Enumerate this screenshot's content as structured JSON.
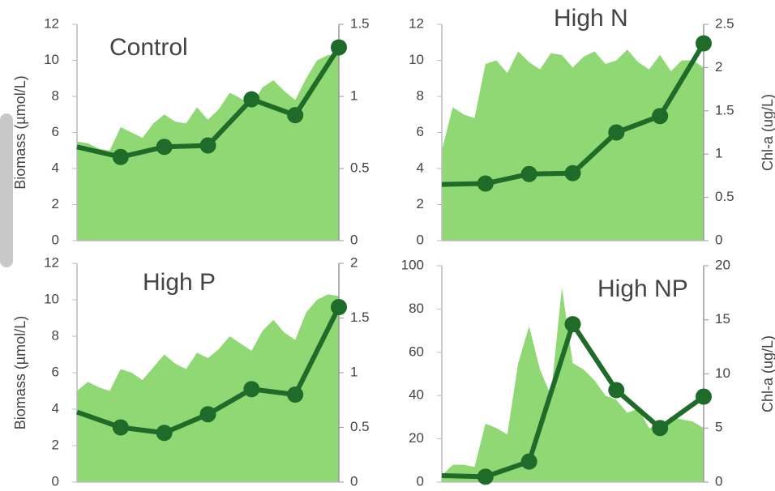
{
  "chart_data": [
    {
      "type": "combo",
      "title": "Control",
      "ylabel": "Biomass (µmol/L)",
      "ylim": [
        0,
        12
      ],
      "yticks": [
        0,
        2,
        4,
        6,
        8,
        10,
        12
      ],
      "y2lim": [
        0,
        1.5
      ],
      "y2ticks": [
        0,
        0.5,
        1,
        1.5
      ],
      "series": [
        {
          "type": "area",
          "color": "#8fd873",
          "values": [
            5.5,
            5.4,
            5.1,
            5.0,
            6.3,
            6.0,
            5.7,
            6.5,
            7.0,
            6.6,
            6.5,
            7.4,
            6.7,
            7.3,
            8.2,
            7.9,
            7.5,
            8.5,
            8.9,
            8.3,
            7.8,
            9.0,
            10.0,
            10.3,
            10.3
          ]
        },
        {
          "type": "line",
          "axis": "y2",
          "color": "#1e6b2a",
          "values": [
            0.65,
            0.58,
            0.65,
            0.66,
            0.98,
            0.87,
            1.34
          ]
        }
      ]
    },
    {
      "type": "combo",
      "title": "High N",
      "y2label": "Chl-a (ug/L)",
      "ylim": [
        0,
        12
      ],
      "yticks": [
        0,
        2,
        4,
        6,
        8,
        10,
        12
      ],
      "y2lim": [
        0,
        2.5
      ],
      "y2ticks": [
        0,
        0.5,
        1,
        1.5,
        2,
        2.5
      ],
      "series": [
        {
          "type": "area",
          "color": "#8fd873",
          "values": [
            5.0,
            7.4,
            7.0,
            6.8,
            9.8,
            10.0,
            9.3,
            10.5,
            9.9,
            9.5,
            10.4,
            10.3,
            9.6,
            10.2,
            10.5,
            9.8,
            10.0,
            10.6,
            9.9,
            9.5,
            10.3,
            9.4,
            10.0,
            10.0,
            9.6
          ]
        },
        {
          "type": "line",
          "axis": "y2",
          "color": "#1e6b2a",
          "values": [
            0.65,
            0.66,
            0.77,
            0.78,
            1.25,
            1.44,
            2.28
          ]
        }
      ]
    },
    {
      "type": "combo",
      "title": "High P",
      "ylabel": "Biomass (µmol/L)",
      "ylim": [
        0,
        12
      ],
      "yticks": [
        0,
        2,
        4,
        6,
        8,
        10,
        12
      ],
      "y2lim": [
        0,
        2
      ],
      "y2ticks": [
        0,
        0.5,
        1,
        1.5,
        2
      ],
      "series": [
        {
          "type": "area",
          "color": "#8fd873",
          "values": [
            5.0,
            5.5,
            5.2,
            5.0,
            6.2,
            6.0,
            5.6,
            6.3,
            7.0,
            6.5,
            6.2,
            7.1,
            6.8,
            7.3,
            8.0,
            7.6,
            7.2,
            8.3,
            8.9,
            8.2,
            7.8,
            9.3,
            10.0,
            10.3,
            10.2
          ]
        },
        {
          "type": "line",
          "axis": "y2",
          "color": "#1e6b2a",
          "values": [
            0.64,
            0.5,
            0.45,
            0.62,
            0.85,
            0.8,
            1.6
          ]
        }
      ]
    },
    {
      "type": "combo",
      "title": "High NP",
      "y2label": "Chl-a (ug/L)",
      "ylim": [
        0,
        100
      ],
      "yticks": [
        0,
        20,
        40,
        60,
        80,
        100
      ],
      "y2lim": [
        0,
        20
      ],
      "y2ticks": [
        0,
        5,
        10,
        15,
        20
      ],
      "series": [
        {
          "type": "area",
          "color": "#8fd873",
          "values": [
            3,
            8,
            8,
            7,
            27,
            25,
            22,
            55,
            72,
            52,
            40,
            90,
            55,
            52,
            47,
            40,
            38,
            32,
            34,
            25,
            26,
            30,
            29,
            28,
            25
          ]
        },
        {
          "type": "line",
          "axis": "y2",
          "color": "#1e6b2a",
          "values": [
            0.6,
            0.5,
            1.9,
            14.6,
            8.5,
            5.0,
            7.9
          ]
        }
      ]
    }
  ]
}
